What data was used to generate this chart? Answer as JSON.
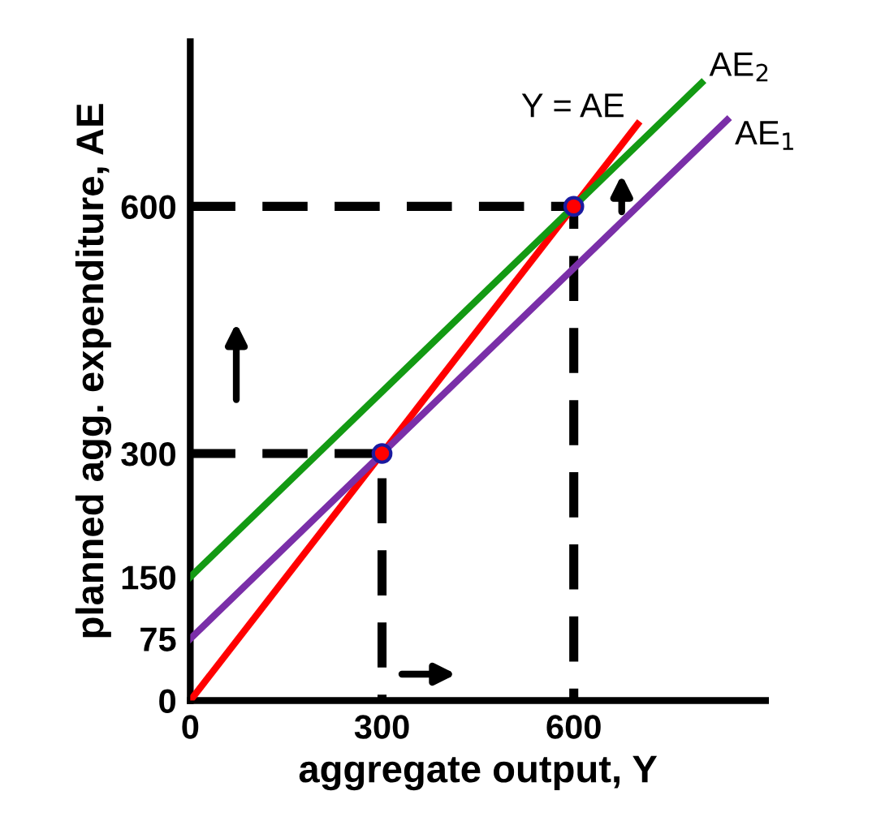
{
  "chart_data": {
    "type": "line",
    "xlabel": "aggregate output, Y",
    "ylabel": "planned agg. expenditure, AE",
    "xlim": [
      0,
      900
    ],
    "ylim": [
      0,
      800
    ],
    "xticks": [
      0,
      300,
      600
    ],
    "yticks": [
      0,
      75,
      150,
      300,
      600
    ],
    "grid": false,
    "legend": false,
    "marker": "none",
    "line_style": "solid",
    "series": [
      {
        "name": "Y = AE",
        "color": "#ff0000",
        "x": [
          0,
          700
        ],
        "values": [
          0,
          700
        ]
      },
      {
        "name": "AE$_{2}$",
        "color": "#139a13",
        "x": [
          0,
          800
        ],
        "values": [
          150,
          750
        ]
      },
      {
        "name": "AE$_{1}$",
        "color": "#7a2fa8",
        "x": [
          0,
          840
        ],
        "values": [
          75,
          705
        ]
      },
      {
        "color": "#000000",
        "line_style": "dashed",
        "x": [
          0,
          300,
          300
        ],
        "values": [
          300,
          300,
          0
        ]
      },
      {
        "color": "#000000",
        "line_style": "dashed",
        "x": [
          0,
          600,
          600
        ],
        "values": [
          600,
          600,
          0
        ]
      },
      {
        "type": "scatter",
        "marker": "circle",
        "color": "#ff0000",
        "x": [
          300,
          600
        ],
        "values": [
          300,
          600
        ]
      }
    ]
  }
}
